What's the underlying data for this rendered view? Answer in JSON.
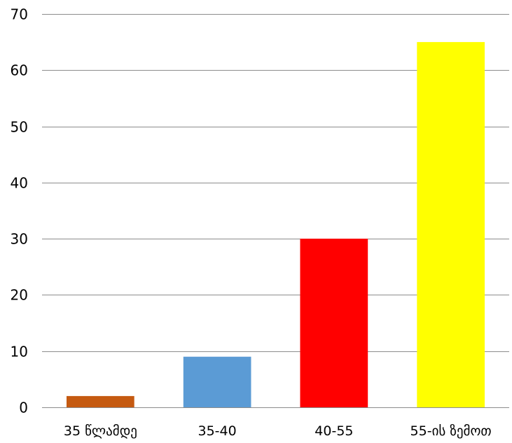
{
  "chart_data": {
    "type": "bar",
    "categories": [
      "35 წლამდე",
      "35-40",
      "40-55",
      "55-ის ზემოთ"
    ],
    "values": [
      2,
      9,
      30,
      65
    ],
    "colors": [
      "#c55a11",
      "#5b9bd5",
      "#ff0000",
      "#ffff00"
    ],
    "title": "",
    "xlabel": "",
    "ylabel": "",
    "ylim": [
      0,
      70
    ],
    "yticks": [
      0,
      10,
      20,
      30,
      40,
      50,
      60,
      70
    ],
    "grid": true,
    "gridline_color": "#8c8c8c",
    "legend": "none"
  }
}
